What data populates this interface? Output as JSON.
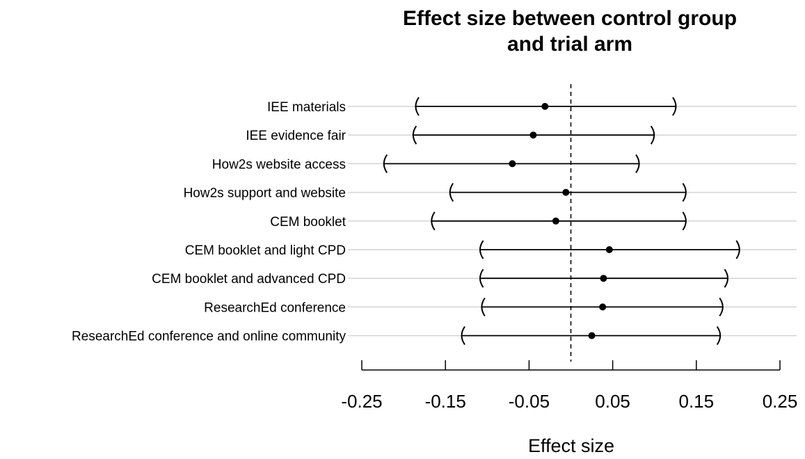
{
  "chart_data": {
    "type": "forest",
    "title_lines": [
      "Effect size between control group",
      "and trial arm"
    ],
    "xlabel": "Effect size",
    "ylabel": "",
    "xlim": [
      -0.25,
      0.25
    ],
    "x_ticks": [
      -0.25,
      -0.15,
      -0.05,
      0.05,
      0.15,
      0.25
    ],
    "x_tick_labels": [
      "-0.25",
      "-0.15",
      "-0.05",
      "0.05",
      "0.15",
      "0.25"
    ],
    "reference_line": 0,
    "grid": "horizontal",
    "categories": [
      "IEE materials",
      "IEE evidence fair",
      "How2s website access",
      "How2s support and website",
      "CEM booklet",
      "CEM booklet and light CPD",
      "CEM booklet and advanced CPD",
      "ResearchEd conference",
      "ResearchEd conference and online community"
    ],
    "estimates": [
      -0.031,
      -0.045,
      -0.07,
      -0.006,
      -0.018,
      0.046,
      0.039,
      0.038,
      0.025
    ],
    "lower": [
      -0.186,
      -0.189,
      -0.224,
      -0.145,
      -0.167,
      -0.109,
      -0.109,
      -0.107,
      -0.131
    ],
    "upper": [
      0.126,
      0.1,
      0.082,
      0.138,
      0.138,
      0.202,
      0.188,
      0.182,
      0.179
    ]
  }
}
